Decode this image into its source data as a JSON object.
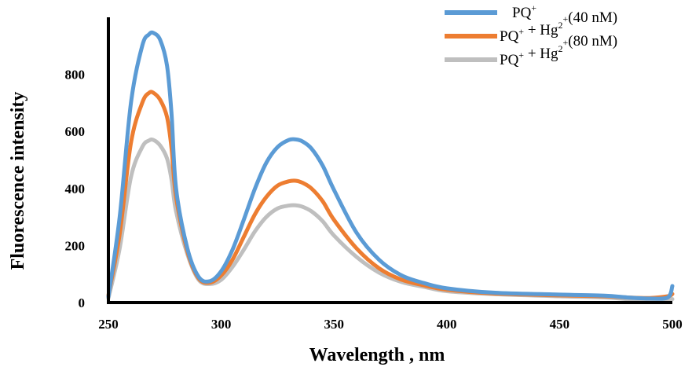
{
  "chart_data": {
    "type": "line",
    "xlabel": "Wavelength , nm",
    "ylabel": "Fluorescence intensity",
    "xlim": [
      250,
      500
    ],
    "ylim": [
      0,
      1000
    ],
    "xticks": [
      250,
      300,
      350,
      400,
      450,
      500
    ],
    "yticks": [
      0,
      200,
      400,
      600,
      800
    ],
    "grid": false,
    "legend_position": "top-right",
    "series": [
      {
        "name": "PQ⁺",
        "color": "#5B9BD5",
        "x": [
          250,
          255,
          260,
          265,
          268,
          270,
          273,
          276,
          278,
          280,
          285,
          290,
          295,
          300,
          305,
          310,
          315,
          320,
          325,
          330,
          333,
          336,
          340,
          345,
          350,
          360,
          370,
          380,
          390,
          400,
          420,
          450,
          470,
          480,
          490,
          498,
          500
        ],
        "y": [
          20,
          300,
          700,
          900,
          940,
          945,
          920,
          830,
          660,
          400,
          190,
          90,
          75,
          110,
          185,
          290,
          400,
          490,
          545,
          570,
          572,
          565,
          540,
          480,
          395,
          245,
          150,
          95,
          68,
          50,
          35,
          28,
          24,
          18,
          14,
          18,
          58
        ]
      },
      {
        "name": "PQ⁺ + Hg²⁺(40 nM)",
        "color": "#ED7D31",
        "x": [
          250,
          255,
          260,
          265,
          268,
          270,
          273,
          276,
          278,
          280,
          285,
          290,
          295,
          300,
          305,
          310,
          315,
          320,
          325,
          330,
          333,
          336,
          340,
          345,
          350,
          360,
          370,
          380,
          390,
          400,
          420,
          450,
          470,
          480,
          490,
          498,
          500
        ],
        "y": [
          25,
          240,
          560,
          700,
          735,
          735,
          710,
          650,
          540,
          370,
          180,
          85,
          70,
          95,
          150,
          230,
          310,
          370,
          410,
          425,
          427,
          420,
          400,
          355,
          290,
          190,
          120,
          80,
          60,
          45,
          32,
          25,
          22,
          18,
          16,
          22,
          30
        ]
      },
      {
        "name": "PQ⁺ + Hg²⁺(80 nM)",
        "color": "#BFBFBF",
        "x": [
          250,
          255,
          260,
          265,
          268,
          270,
          273,
          276,
          278,
          280,
          285,
          290,
          295,
          300,
          305,
          310,
          315,
          320,
          325,
          330,
          333,
          336,
          340,
          345,
          350,
          360,
          370,
          380,
          390,
          400,
          420,
          450,
          470,
          480,
          490,
          498,
          500
        ],
        "y": [
          15,
          190,
          440,
          545,
          568,
          570,
          550,
          505,
          430,
          320,
          170,
          80,
          65,
          80,
          125,
          185,
          250,
          300,
          330,
          340,
          341,
          336,
          320,
          285,
          235,
          160,
          105,
          72,
          55,
          40,
          30,
          22,
          18,
          12,
          10,
          12,
          12
        ]
      }
    ]
  }
}
